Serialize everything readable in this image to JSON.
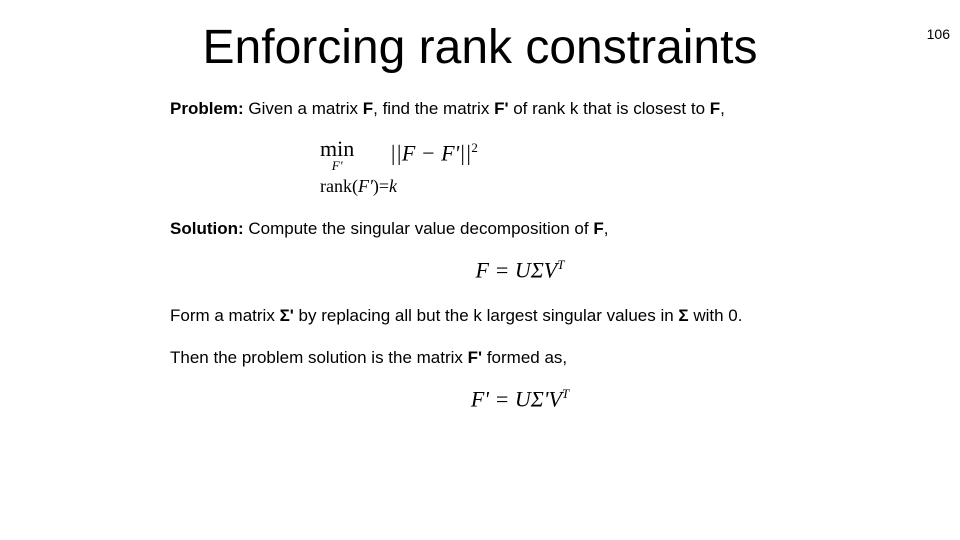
{
  "page_number": "106",
  "title": "Enforcing rank constraints",
  "problem_label": "Problem:",
  "problem_text": " Given a matrix ",
  "problem_text2": ", find the matrix ",
  "problem_text3": " of rank k that is closest to ",
  "F": "F",
  "Fprime": "F'",
  "comma": ",",
  "min_word": "min",
  "min_sub": "F'",
  "norm_expr": "||F − F'||",
  "norm_sup": "2",
  "rank_lhs": "rank(",
  "rank_mid": "F'",
  "rank_rhs": ")=",
  "rank_k": "k",
  "solution_label": "Solution:",
  "solution_text": " Compute the singular value decomposition of ",
  "svd_lhs": "F = UΣV",
  "svd_sup": "T",
  "form_text1": "Form a matrix ",
  "Sigma_prime": "Σ'",
  "form_text2": " by replacing all but the k largest singular values in ",
  "Sigma": "Σ",
  "form_text3": " with 0.",
  "then_text1": "Then the problem solution is the matrix ",
  "then_text2": " formed as,",
  "result_lhs": "F' = UΣ'V",
  "result_sup": "T",
  "colors": {
    "text": "#000000",
    "background": "#ffffff"
  },
  "fonts": {
    "body": "Arial",
    "math": "Times New Roman",
    "title_size_pt": 48,
    "body_size_pt": 17,
    "math_size_pt": 22
  }
}
